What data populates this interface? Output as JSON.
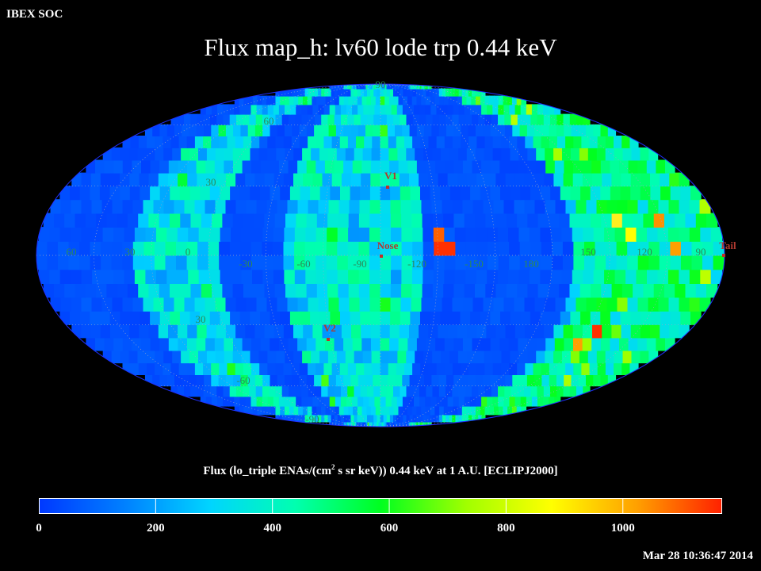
{
  "header": {
    "org": "IBEX SOC",
    "title": "Flux map_h: lv60 lode trp 0.44 keV",
    "timestamp": "Mar 28 10:36:47 2014"
  },
  "chart_data": {
    "type": "heatmap",
    "projection": "mollweide",
    "title": "Flux map_h: lv60 lode trp 0.44 keV",
    "colorbar": {
      "label_prefix": "Flux (lo_triple ENAs/(cm",
      "label_sup": "2",
      "label_suffix": " s sr keV)) 0.44 keV at 1 A.U. [ECLIPJ2000]",
      "ticks": [
        0,
        200,
        400,
        600,
        800,
        1000
      ],
      "range": [
        0,
        1170
      ],
      "colors": [
        "#0038ff",
        "#0080ff",
        "#00d4ff",
        "#00ffb0",
        "#00ff20",
        "#a0ff00",
        "#ffff00",
        "#ffa000",
        "#ff2000"
      ]
    },
    "longitude_labels": [
      "60",
      "30",
      "0",
      "-30",
      "-60",
      "-90",
      "-120",
      "-150",
      "180",
      "150",
      "120",
      "90"
    ],
    "latitude_labels": [
      "90",
      "60",
      "30",
      "30",
      "-60",
      "-90"
    ],
    "markers": [
      {
        "name": "V1",
        "lon": -105,
        "lat": 34
      },
      {
        "name": "Nose",
        "lon": -105,
        "lat": 5
      },
      {
        "name": "V2",
        "lon": -74,
        "lat": -32
      },
      {
        "name": "Tail",
        "lon": 75,
        "lat": 0
      }
    ],
    "grid": true
  }
}
